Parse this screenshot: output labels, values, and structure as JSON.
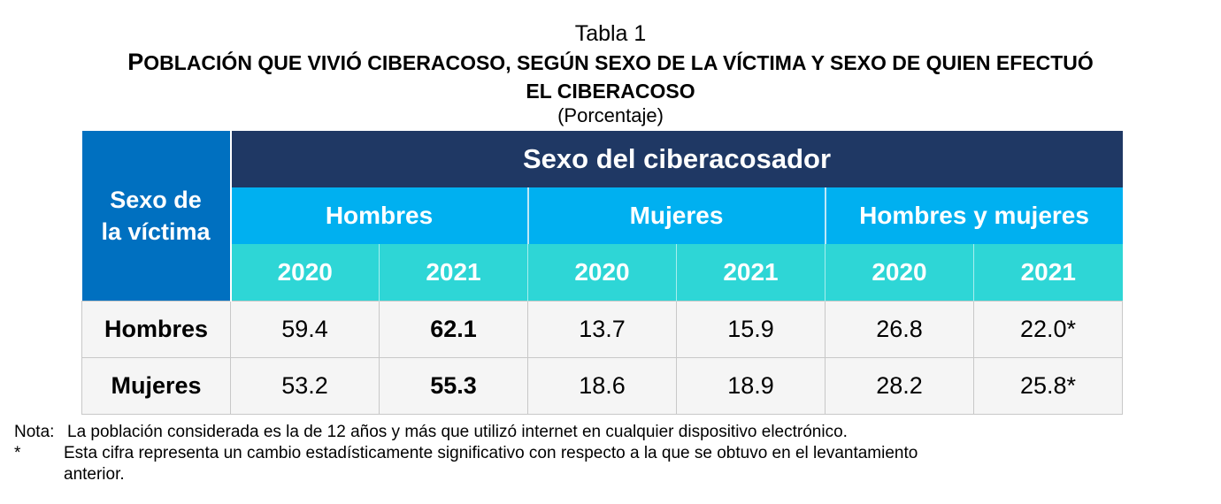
{
  "header": {
    "table_number": "Tabla 1",
    "title_line1_initial": "P",
    "title_line1_rest": "OBLACIÓN QUE VIVIÓ CIBERACOSO, SEGÚN SEXO DE LA VÍCTIMA Y SEXO DE QUIEN EFECTUÓ",
    "title_line2": "EL CIBERACOSO",
    "unit": "(Porcentaje)"
  },
  "table": {
    "victim_header_line1": "Sexo de",
    "victim_header_line2": "la víctima",
    "harasser_header": "Sexo del ciberacosador",
    "groups": [
      "Hombres",
      "Mujeres",
      "Hombres y mujeres"
    ],
    "years": [
      "2020",
      "2021",
      "2020",
      "2021",
      "2020",
      "2021"
    ],
    "rows": [
      {
        "label": "Hombres",
        "values": [
          "59.4",
          "62.1",
          "13.7",
          "15.9",
          "26.8",
          "22.0*"
        ]
      },
      {
        "label": "Mujeres",
        "values": [
          "53.2",
          "55.3",
          "18.6",
          "18.9",
          "28.2",
          "25.8*"
        ]
      }
    ]
  },
  "notes": {
    "note_label": "Nota:",
    "note_text": "La población considerada es la de 12 años y más que utilizó internet en cualquier dispositivo electrónico.",
    "star_label": "*",
    "star_text_line1": "Esta cifra representa un cambio estadísticamente significativo con respecto a la que se obtuvo en el levantamiento",
    "star_text_line2": "anterior."
  },
  "colors": {
    "victim_header_bg": "#0070c0",
    "harasser_header_bg": "#1f3864",
    "group_header_bg": "#00b0f0",
    "year_header_bg": "#2ed6d6",
    "body_cell_bg": "#f5f5f5"
  }
}
